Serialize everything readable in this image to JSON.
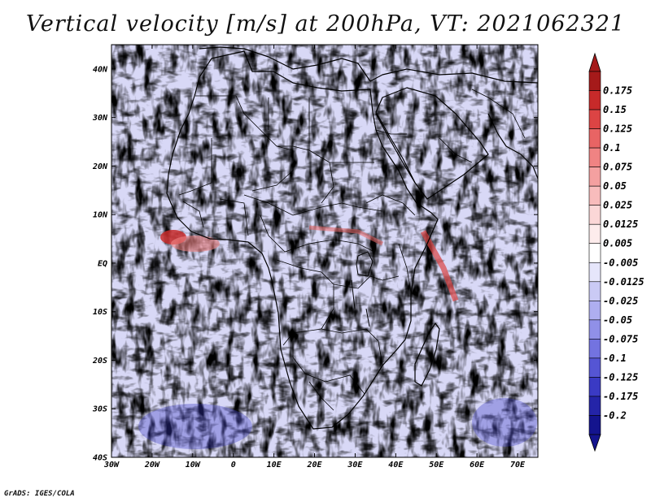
{
  "title": "Vertical velocity [m/s] at 200hPa, VT: 2021062321",
  "credit": "GrADS: IGES/COLA",
  "map": {
    "lat_ticks": [
      "40N",
      "30N",
      "20N",
      "10N",
      "EQ",
      "10S",
      "20S",
      "30S",
      "40S"
    ],
    "lon_ticks": [
      "30W",
      "20W",
      "10W",
      "0",
      "10E",
      "20E",
      "30E",
      "40E",
      "50E",
      "60E",
      "70E"
    ],
    "lon_range": [
      -30,
      75
    ],
    "lat_range": [
      -40,
      45
    ]
  },
  "colorbar": {
    "levels": [
      "0.175",
      "0.15",
      "0.125",
      "0.1",
      "0.075",
      "0.05",
      "0.025",
      "0.0125",
      "0.005",
      "-0.005",
      "-0.0125",
      "-0.025",
      "-0.05",
      "-0.075",
      "-0.1",
      "-0.125",
      "-0.175",
      "-0.2"
    ],
    "colors": [
      "#a51a1a",
      "#c72a2a",
      "#dc4444",
      "#e86464",
      "#f08383",
      "#f4a0a0",
      "#f8bcbc",
      "#fbd7d7",
      "#fdecec",
      "#ffffff",
      "#e6e6fb",
      "#cacaf5",
      "#aeaef0",
      "#9090e8",
      "#7373e0",
      "#5555d4",
      "#3a3ac4",
      "#2424a8",
      "#14148e"
    ],
    "top_arrow_color": "#a51a1a",
    "bottom_arrow_color": "#14148e"
  }
}
